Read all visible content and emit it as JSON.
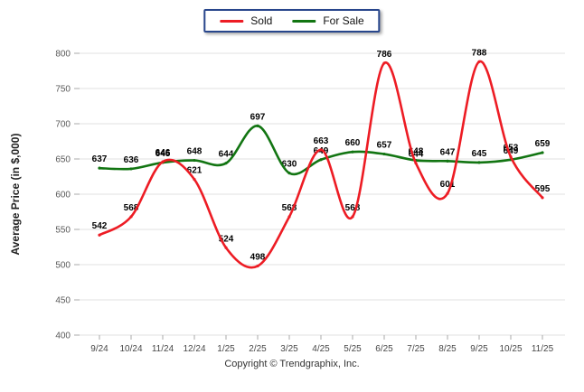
{
  "chart_data": {
    "type": "line",
    "title": "",
    "xlabel": "",
    "ylabel": "Average Price (in $,000)",
    "ylim": [
      400,
      800
    ],
    "ytick_step": 50,
    "grid": true,
    "legend_position": "top-center",
    "categories": [
      "9/24",
      "10/24",
      "11/24",
      "12/24",
      "1/25",
      "2/25",
      "3/25",
      "4/25",
      "5/25",
      "6/25",
      "7/25",
      "8/25",
      "9/25",
      "10/25",
      "11/25"
    ],
    "series": [
      {
        "name": "Sold",
        "color": "#ED1C24",
        "values": [
          542,
          568,
          646,
          621,
          524,
          498,
          568,
          663,
          568,
          786,
          644,
          601,
          788,
          653,
          595
        ]
      },
      {
        "name": "For Sale",
        "color": "#127512",
        "values": [
          637,
          636,
          645,
          648,
          644,
          697,
          630,
          649,
          660,
          657,
          648,
          647,
          645,
          649,
          659
        ]
      }
    ],
    "copyright": "Copyright © Trendgraphix, Inc."
  },
  "colors": {
    "gridline": "#e0e0e0",
    "tick": "#aaaaaa",
    "axis_text": "#5a5a5a",
    "x_text": "#484848",
    "data_label": "#000000",
    "legend_border": "#28468C"
  }
}
